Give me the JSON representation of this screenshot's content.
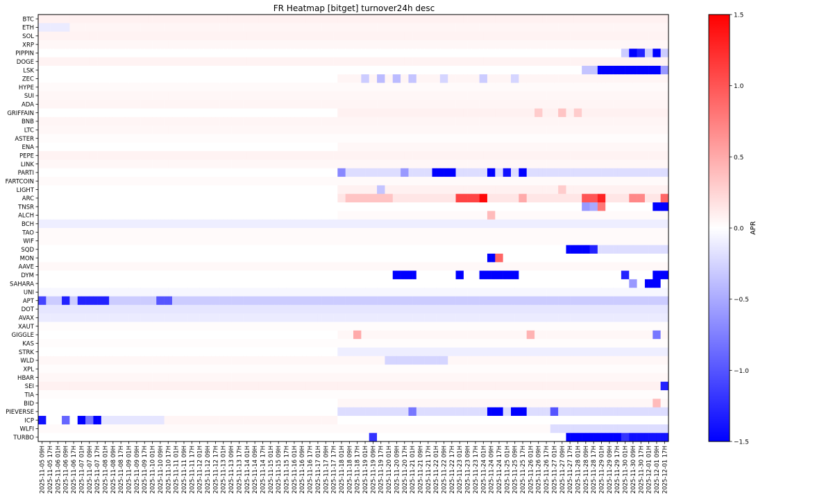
{
  "chart_data": {
    "type": "heatmap",
    "title": "FR Heatmap [bitget] turnover24h desc",
    "rows": [
      "BTC",
      "ETH",
      "SOL",
      "XRP",
      "PIPPIN",
      "DOGE",
      "LSK",
      "ZEC",
      "HYPE",
      "SUI",
      "ADA",
      "GRIFFAIN",
      "BNB",
      "LTC",
      "ASTER",
      "ENA",
      "PEPE",
      "LINK",
      "PARTI",
      "FARTCOIN",
      "LIGHT",
      "ARC",
      "TNSR",
      "ALCH",
      "BCH",
      "TAO",
      "WIF",
      "SQD",
      "MON",
      "AAVE",
      "DYM",
      "SAHARA",
      "UNI",
      "APT",
      "DOT",
      "AVAX",
      "XAUT",
      "GIGGLE",
      "KAS",
      "STRK",
      "WLD",
      "XPL",
      "HBAR",
      "SEI",
      "TIA",
      "BID",
      "PIEVERSE",
      "ICP",
      "WLFI",
      "TURBO"
    ],
    "x_labels": [
      "2025-11-05 09H",
      "2025-11-05 17H",
      "2025-11-06 01H",
      "2025-11-06 09H",
      "2025-11-06 17H",
      "2025-11-07 01H",
      "2025-11-07 09H",
      "2025-11-07 17H",
      "2025-11-08 01H",
      "2025-11-08 09H",
      "2025-11-08 17H",
      "2025-11-09 01H",
      "2025-11-09 09H",
      "2025-11-09 17H",
      "2025-11-10 01H",
      "2025-11-10 09H",
      "2025-11-10 17H",
      "2025-11-11 01H",
      "2025-11-11 09H",
      "2025-11-11 17H",
      "2025-11-12 01H",
      "2025-11-12 09H",
      "2025-11-12 17H",
      "2025-11-13 01H",
      "2025-11-13 09H",
      "2025-11-13 17H",
      "2025-11-14 01H",
      "2025-11-14 09H",
      "2025-11-14 17H",
      "2025-11-15 01H",
      "2025-11-15 09H",
      "2025-11-15 17H",
      "2025-11-16 01H",
      "2025-11-16 09H",
      "2025-11-16 17H",
      "2025-11-17 01H",
      "2025-11-17 09H",
      "2025-11-17 17H",
      "2025-11-18 01H",
      "2025-11-18 09H",
      "2025-11-18 17H",
      "2025-11-19 01H",
      "2025-11-19 09H",
      "2025-11-19 17H",
      "2025-11-20 01H",
      "2025-11-20 09H",
      "2025-11-20 17H",
      "2025-11-21 01H",
      "2025-11-21 09H",
      "2025-11-21 17H",
      "2025-11-22 01H",
      "2025-11-22 09H",
      "2025-11-22 17H",
      "2025-11-23 01H",
      "2025-11-23 09H",
      "2025-11-23 17H",
      "2025-11-24 01H",
      "2025-11-24 09H",
      "2025-11-24 17H",
      "2025-11-25 01H",
      "2025-11-25 09H",
      "2025-11-25 17H",
      "2025-11-26 01H",
      "2025-11-26 09H",
      "2025-11-26 17H",
      "2025-11-27 01H",
      "2025-11-27 09H",
      "2025-11-27 17H",
      "2025-11-28 01H",
      "2025-11-28 09H",
      "2025-11-28 17H",
      "2025-11-29 01H",
      "2025-11-29 09H",
      "2025-11-29 17H",
      "2025-11-30 01H",
      "2025-11-30 09H",
      "2025-11-30 17H",
      "2025-12-01 01H",
      "2025-12-01 09H",
      "2025-12-01 17H"
    ],
    "cells_per_label": 2,
    "colorbar": {
      "label": "APR",
      "min": -1.5,
      "max": 1.5,
      "ticks": [
        -1.5,
        -1.0,
        -0.5,
        0.0,
        0.5,
        1.0,
        1.5
      ],
      "tick_labels": [
        "−1.5",
        "−1.0",
        "−0.5",
        "0.0",
        "0.5",
        "1.0",
        "1.5"
      ],
      "colormap": "bwr"
    },
    "grid": false,
    "notes_on_values": "Pre 2025-11-18: most rows near 0 with slight positive (pink); APT and ICP strongly negative at start; from 2025-11-18 17H onward many rows vary. Notable: PIPPIN and LSK strongly negative near end; ARC strongly positive ~2025-11-23 09H to 2025-11-24 01H and ~2025-11-29; TURBO strongly negative from 2025-11-28.",
    "features": [
      {
        "row": "BTC",
        "start": 0,
        "end": 160,
        "value": 0.08
      },
      {
        "row": "ETH",
        "start": 0,
        "end": 160,
        "value": 0.06
      },
      {
        "row": "ETH",
        "start": 0,
        "end": 8,
        "value": -0.12
      },
      {
        "row": "SOL",
        "start": 0,
        "end": 160,
        "value": 0.07
      },
      {
        "row": "XRP",
        "start": 0,
        "end": 160,
        "value": 0.05
      },
      {
        "row": "PIPPIN",
        "start": 148,
        "end": 160,
        "value": -0.3
      },
      {
        "row": "PIPPIN",
        "start": 150,
        "end": 152,
        "value": -1.5
      },
      {
        "row": "PIPPIN",
        "start": 152,
        "end": 154,
        "value": -1.3
      },
      {
        "row": "PIPPIN",
        "start": 156,
        "end": 158,
        "value": -1.5
      },
      {
        "row": "DOGE",
        "start": 0,
        "end": 160,
        "value": 0.07
      },
      {
        "row": "LSK",
        "start": 138,
        "end": 142,
        "value": -0.35
      },
      {
        "row": "LSK",
        "start": 142,
        "end": 158,
        "value": -1.5
      },
      {
        "row": "LSK",
        "start": 158,
        "end": 160,
        "value": -0.6
      },
      {
        "row": "ZEC",
        "start": 76,
        "end": 160,
        "value": 0.06
      },
      {
        "row": "ZEC",
        "start": 82,
        "end": 84,
        "value": -0.3
      },
      {
        "row": "ZEC",
        "start": 86,
        "end": 88,
        "value": -0.4
      },
      {
        "row": "ZEC",
        "start": 90,
        "end": 92,
        "value": -0.4
      },
      {
        "row": "ZEC",
        "start": 94,
        "end": 96,
        "value": -0.35
      },
      {
        "row": "ZEC",
        "start": 102,
        "end": 104,
        "value": -0.25
      },
      {
        "row": "ZEC",
        "start": 112,
        "end": 114,
        "value": -0.3
      },
      {
        "row": "ZEC",
        "start": 120,
        "end": 122,
        "value": -0.25
      },
      {
        "row": "HYPE",
        "start": 0,
        "end": 160,
        "value": 0.03
      },
      {
        "row": "SUI",
        "start": 0,
        "end": 160,
        "value": 0.05
      },
      {
        "row": "ADA",
        "start": 0,
        "end": 160,
        "value": 0.06
      },
      {
        "row": "GRIFFAIN",
        "start": 76,
        "end": 160,
        "value": 0.08
      },
      {
        "row": "GRIFFAIN",
        "start": 126,
        "end": 128,
        "value": 0.3
      },
      {
        "row": "GRIFFAIN",
        "start": 132,
        "end": 134,
        "value": 0.35
      },
      {
        "row": "GRIFFAIN",
        "start": 136,
        "end": 138,
        "value": 0.3
      },
      {
        "row": "BNB",
        "start": 0,
        "end": 160,
        "value": 0.06
      },
      {
        "row": "LTC",
        "start": 0,
        "end": 160,
        "value": 0.05
      },
      {
        "row": "ASTER",
        "start": 0,
        "end": 160,
        "value": 0.02
      },
      {
        "row": "ENA",
        "start": 76,
        "end": 160,
        "value": 0.05
      },
      {
        "row": "PEPE",
        "start": 0,
        "end": 160,
        "value": 0.07
      },
      {
        "row": "LINK",
        "start": 0,
        "end": 160,
        "value": 0.05
      },
      {
        "row": "PARTI",
        "start": 76,
        "end": 160,
        "value": -0.2
      },
      {
        "row": "PARTI",
        "start": 76,
        "end": 78,
        "value": -0.7
      },
      {
        "row": "PARTI",
        "start": 92,
        "end": 94,
        "value": -0.6
      },
      {
        "row": "PARTI",
        "start": 100,
        "end": 106,
        "value": -1.5
      },
      {
        "row": "PARTI",
        "start": 114,
        "end": 116,
        "value": -1.5
      },
      {
        "row": "PARTI",
        "start": 118,
        "end": 120,
        "value": -1.4
      },
      {
        "row": "PARTI",
        "start": 122,
        "end": 124,
        "value": -1.5
      },
      {
        "row": "FARTCOIN",
        "start": 0,
        "end": 160,
        "value": 0.03
      },
      {
        "row": "LIGHT",
        "start": 76,
        "end": 160,
        "value": 0.08
      },
      {
        "row": "LIGHT",
        "start": 86,
        "end": 88,
        "value": -0.35
      },
      {
        "row": "LIGHT",
        "start": 132,
        "end": 134,
        "value": 0.3
      },
      {
        "row": "ARC",
        "start": 76,
        "end": 160,
        "value": 0.15
      },
      {
        "row": "ARC",
        "start": 78,
        "end": 90,
        "value": 0.35
      },
      {
        "row": "ARC",
        "start": 106,
        "end": 112,
        "value": 1.1
      },
      {
        "row": "ARC",
        "start": 112,
        "end": 114,
        "value": 1.45
      },
      {
        "row": "ARC",
        "start": 122,
        "end": 124,
        "value": 0.5
      },
      {
        "row": "ARC",
        "start": 138,
        "end": 142,
        "value": 1.0
      },
      {
        "row": "ARC",
        "start": 142,
        "end": 144,
        "value": 1.3
      },
      {
        "row": "ARC",
        "start": 150,
        "end": 154,
        "value": 0.7
      },
      {
        "row": "ARC",
        "start": 158,
        "end": 160,
        "value": 0.9
      },
      {
        "row": "TNSR",
        "start": 138,
        "end": 140,
        "value": -0.6
      },
      {
        "row": "TNSR",
        "start": 140,
        "end": 142,
        "value": -0.5
      },
      {
        "row": "TNSR",
        "start": 142,
        "end": 144,
        "value": 0.8
      },
      {
        "row": "TNSR",
        "start": 156,
        "end": 160,
        "value": -1.5
      },
      {
        "row": "ALCH",
        "start": 76,
        "end": 160,
        "value": 0.03
      },
      {
        "row": "ALCH",
        "start": 114,
        "end": 116,
        "value": 0.4
      },
      {
        "row": "BCH",
        "start": 0,
        "end": 160,
        "value": -0.1
      },
      {
        "row": "TAO",
        "start": 0,
        "end": 160,
        "value": 0.03
      },
      {
        "row": "WIF",
        "start": 0,
        "end": 160,
        "value": 0.03
      },
      {
        "row": "SQD",
        "start": 134,
        "end": 140,
        "value": -1.5
      },
      {
        "row": "SQD",
        "start": 140,
        "end": 142,
        "value": -1.3
      },
      {
        "row": "SQD",
        "start": 142,
        "end": 160,
        "value": -0.2
      },
      {
        "row": "MON",
        "start": 114,
        "end": 116,
        "value": -1.5
      },
      {
        "row": "MON",
        "start": 116,
        "end": 118,
        "value": 0.9
      },
      {
        "row": "AAVE",
        "start": 0,
        "end": 160,
        "value": 0.04
      },
      {
        "row": "DYM",
        "start": 90,
        "end": 96,
        "value": -1.5
      },
      {
        "row": "DYM",
        "start": 106,
        "end": 108,
        "value": -1.5
      },
      {
        "row": "DYM",
        "start": 112,
        "end": 122,
        "value": -1.5
      },
      {
        "row": "DYM",
        "start": 148,
        "end": 150,
        "value": -1.3
      },
      {
        "row": "DYM",
        "start": 156,
        "end": 160,
        "value": -1.5
      },
      {
        "row": "SAHARA",
        "start": 150,
        "end": 152,
        "value": -0.6
      },
      {
        "row": "SAHARA",
        "start": 154,
        "end": 158,
        "value": -1.5
      },
      {
        "row": "UNI",
        "start": 0,
        "end": 160,
        "value": -0.05
      },
      {
        "row": "APT",
        "start": 0,
        "end": 160,
        "value": -0.3
      },
      {
        "row": "APT",
        "start": 0,
        "end": 2,
        "value": -1.1
      },
      {
        "row": "APT",
        "start": 6,
        "end": 8,
        "value": -1.3
      },
      {
        "row": "APT",
        "start": 10,
        "end": 18,
        "value": -1.3
      },
      {
        "row": "APT",
        "start": 30,
        "end": 34,
        "value": -1.0
      },
      {
        "row": "DOT",
        "start": 0,
        "end": 160,
        "value": -0.15
      },
      {
        "row": "AVAX",
        "start": 0,
        "end": 160,
        "value": -0.12
      },
      {
        "row": "XAUT",
        "start": 0,
        "end": 160,
        "value": 0.02
      },
      {
        "row": "GIGGLE",
        "start": 76,
        "end": 160,
        "value": 0.05
      },
      {
        "row": "GIGGLE",
        "start": 80,
        "end": 82,
        "value": 0.5
      },
      {
        "row": "GIGGLE",
        "start": 124,
        "end": 126,
        "value": 0.45
      },
      {
        "row": "GIGGLE",
        "start": 156,
        "end": 158,
        "value": -0.8
      },
      {
        "row": "KAS",
        "start": 0,
        "end": 160,
        "value": 0.02
      },
      {
        "row": "STRK",
        "start": 76,
        "end": 160,
        "value": -0.1
      },
      {
        "row": "WLD",
        "start": 0,
        "end": 160,
        "value": 0.05
      },
      {
        "row": "WLD",
        "start": 88,
        "end": 104,
        "value": -0.25
      },
      {
        "row": "XPL",
        "start": 0,
        "end": 160,
        "value": 0.02
      },
      {
        "row": "HBAR",
        "start": 0,
        "end": 160,
        "value": 0.05
      },
      {
        "row": "SEI",
        "start": 0,
        "end": 160,
        "value": 0.08
      },
      {
        "row": "SEI",
        "start": 158,
        "end": 160,
        "value": -1.3
      },
      {
        "row": "TIA",
        "start": 0,
        "end": 160,
        "value": 0.02
      },
      {
        "row": "BID",
        "start": 76,
        "end": 160,
        "value": 0.05
      },
      {
        "row": "BID",
        "start": 156,
        "end": 158,
        "value": 0.4
      },
      {
        "row": "PIEVERSE",
        "start": 76,
        "end": 160,
        "value": -0.2
      },
      {
        "row": "PIEVERSE",
        "start": 94,
        "end": 96,
        "value": -0.8
      },
      {
        "row": "PIEVERSE",
        "start": 114,
        "end": 118,
        "value": -1.5
      },
      {
        "row": "PIEVERSE",
        "start": 120,
        "end": 124,
        "value": -1.5
      },
      {
        "row": "PIEVERSE",
        "start": 130,
        "end": 132,
        "value": -1.0
      },
      {
        "row": "ICP",
        "start": 0,
        "end": 2,
        "value": -1.4
      },
      {
        "row": "ICP",
        "start": 6,
        "end": 8,
        "value": -0.9
      },
      {
        "row": "ICP",
        "start": 10,
        "end": 12,
        "value": -1.5
      },
      {
        "row": "ICP",
        "start": 12,
        "end": 14,
        "value": -0.8
      },
      {
        "row": "ICP",
        "start": 14,
        "end": 16,
        "value": -1.5
      },
      {
        "row": "ICP",
        "start": 16,
        "end": 32,
        "value": -0.15
      },
      {
        "row": "ICP",
        "start": 32,
        "end": 76,
        "value": 0.06
      },
      {
        "row": "WLFI",
        "start": 0,
        "end": 160,
        "value": 0.03
      },
      {
        "row": "WLFI",
        "start": 130,
        "end": 160,
        "value": -0.2
      },
      {
        "row": "TURBO",
        "start": 84,
        "end": 86,
        "value": -1.2
      },
      {
        "row": "TURBO",
        "start": 134,
        "end": 148,
        "value": -1.5
      },
      {
        "row": "TURBO",
        "start": 148,
        "end": 150,
        "value": -1.2
      },
      {
        "row": "TURBO",
        "start": 150,
        "end": 160,
        "value": -1.4
      }
    ]
  }
}
